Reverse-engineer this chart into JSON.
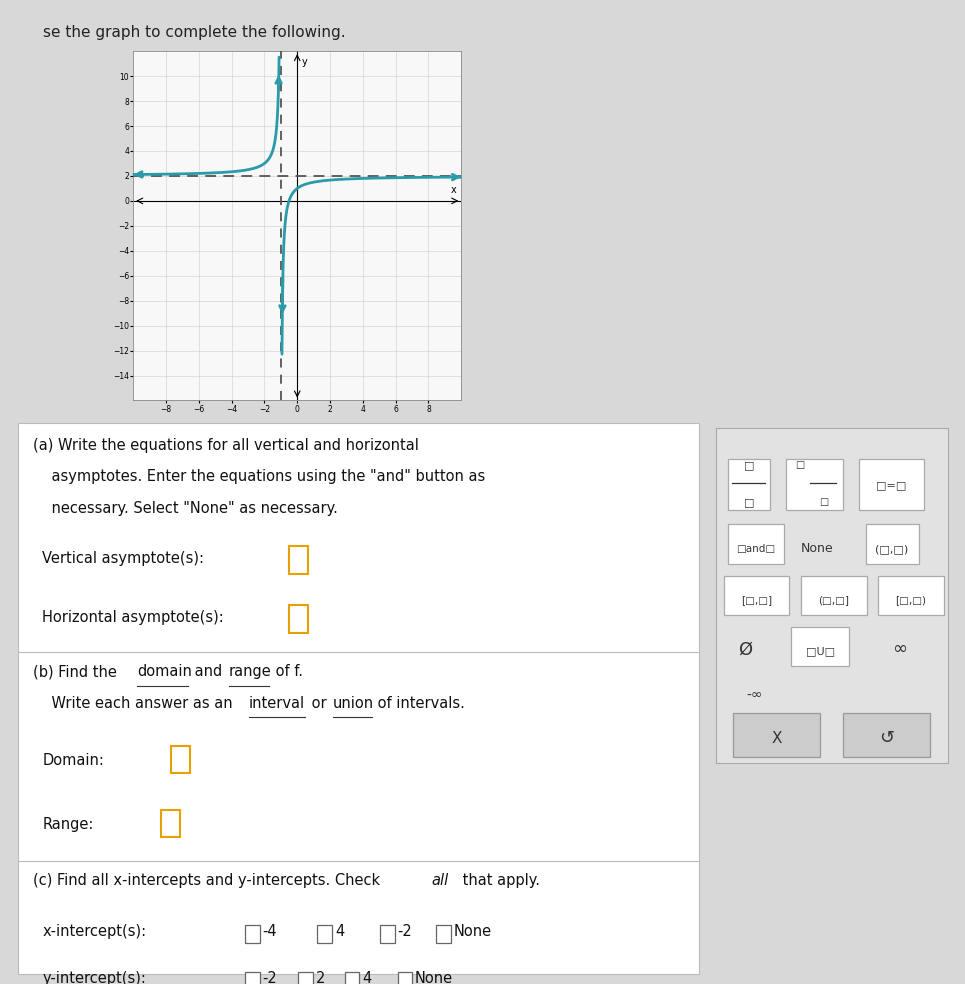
{
  "graph": {
    "xlim": [
      -10,
      10
    ],
    "ylim": [
      -16,
      12
    ],
    "xticks": [
      -8,
      -6,
      -4,
      -2,
      0,
      2,
      4,
      6,
      8
    ],
    "yticks": [
      -14,
      -12,
      -10,
      -8,
      -6,
      -4,
      -2,
      0,
      2,
      4,
      6,
      8,
      10
    ],
    "vertical_asymptote": -1,
    "horizontal_asymptote": 2,
    "curve_color": "#2b9aaa",
    "asymptote_color": "#555555",
    "grid_color": "#cccccc",
    "graph_bg": "#f8f8f8"
  },
  "bg_color": "#d8d8d8",
  "panel_bg": "#ffffff",
  "sidebar_bg": "#e0e0e0",
  "header_text": "se the graph to complete the following.",
  "fs_main": 10.5,
  "x_choices": [
    "-4",
    "4",
    "-2",
    "None"
  ],
  "y_choices": [
    "-2",
    "2",
    "4",
    "None"
  ]
}
